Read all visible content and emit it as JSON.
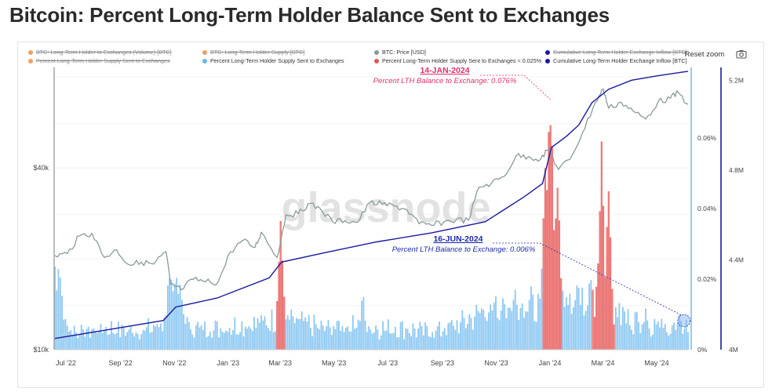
{
  "page": {
    "title": "Bitcoin: Percent Long-Term Holder Balance Sent to Exchanges"
  },
  "toolbar": {
    "reset_zoom_label": "Reset zoom",
    "camera_icon": "camera-icon"
  },
  "legend": [
    {
      "label": "BTC: Long-Term Holder to Exchanges (Volume) [BTC]",
      "color": "#f0a060",
      "hidden": true
    },
    {
      "label": "BTC: Long-Term Holder Supply [BTC]",
      "color": "#f0a060",
      "hidden": true
    },
    {
      "label": "BTC: Price [USD]",
      "color": "#8a9a9a",
      "hidden": false
    },
    {
      "label": "Cumulative Long-Term Holder Exchange Inflow [BTC]",
      "color": "#1a1aa0",
      "hidden": true
    },
    {
      "label": "Percent Long-Term Holder Supply Sent to Exchanges",
      "color": "#f0a060",
      "hidden": true
    },
    {
      "label": "Percent Long-Term Holder Supply Sent to Exchanges",
      "color": "#6ab4ec",
      "hidden": false
    },
    {
      "label": "Percent Long-Term Holder Supply Sent to Exchanges < 0.025%",
      "color": "#e65555",
      "hidden": false
    },
    {
      "label": "Cumulative Long-Term Holder Exchange Inflow [BTC]",
      "color": "#1a1aa0",
      "hidden": false
    }
  ],
  "watermark": "glassnode",
  "annotations": [
    {
      "date": "14-JAN-2024",
      "text": "Percent LTH Balance to Exchange: 0.076%",
      "color": "#e0306a"
    },
    {
      "date": "16-JUN-2024",
      "text": "Percent LTH Balance to Exchange: 0.006%",
      "color": "#1e2aa8"
    }
  ],
  "chart_data": {
    "type": "bar",
    "title": "Bitcoin: Percent Long-Term Holder Balance Sent to Exchanges",
    "x_ticks": [
      "Jul '22",
      "Sep '22",
      "Nov '22",
      "Jan '23",
      "Mar '23",
      "May '23",
      "Jul '23",
      "Sep '23",
      "Nov '23",
      "Jan '24",
      "Mar '24",
      "May '24"
    ],
    "x_start": "2022-07-01",
    "x_end": "2024-06-18",
    "price_axis": {
      "scale": "log",
      "ticks": [
        "$10k",
        "$40k"
      ],
      "tick_values": [
        10000,
        40000
      ]
    },
    "percent_axis": {
      "ticks": [
        "0%",
        "0.02%",
        "0.04%",
        "0.06%"
      ],
      "tick_values": [
        0,
        0.02,
        0.04,
        0.06
      ],
      "range": [
        0,
        0.076
      ]
    },
    "cumulative_axis": {
      "ticks": [
        "4M",
        "4.4M",
        "4.8M",
        "5.2M"
      ],
      "tick_values": [
        4.0,
        4.4,
        4.8,
        5.2
      ],
      "range": [
        4.0,
        5.25
      ],
      "unit": "M"
    },
    "price_series": {
      "name": "BTC: Price [USD]",
      "points": [
        [
          "2022-07-01",
          20500
        ],
        [
          "2022-07-15",
          20800
        ],
        [
          "2022-07-29",
          23800
        ],
        [
          "2022-08-12",
          24300
        ],
        [
          "2022-08-26",
          20200
        ],
        [
          "2022-09-09",
          21400
        ],
        [
          "2022-09-23",
          19100
        ],
        [
          "2022-10-07",
          19500
        ],
        [
          "2022-10-21",
          19200
        ],
        [
          "2022-11-04",
          21100
        ],
        [
          "2022-11-09",
          16500
        ],
        [
          "2022-11-21",
          15800
        ],
        [
          "2022-12-05",
          17100
        ],
        [
          "2022-12-19",
          16800
        ],
        [
          "2023-01-02",
          16700
        ],
        [
          "2023-01-16",
          21100
        ],
        [
          "2023-01-30",
          23000
        ],
        [
          "2023-02-13",
          21800
        ],
        [
          "2023-02-20",
          24500
        ],
        [
          "2023-03-10",
          20200
        ],
        [
          "2023-03-20",
          28000
        ],
        [
          "2023-04-03",
          28200
        ],
        [
          "2023-04-14",
          30400
        ],
        [
          "2023-04-28",
          29300
        ],
        [
          "2023-05-12",
          26500
        ],
        [
          "2023-05-26",
          26800
        ],
        [
          "2023-06-09",
          26400
        ],
        [
          "2023-06-23",
          30700
        ],
        [
          "2023-07-07",
          30300
        ],
        [
          "2023-07-21",
          29900
        ],
        [
          "2023-08-04",
          29100
        ],
        [
          "2023-08-18",
          26100
        ],
        [
          "2023-09-01",
          25800
        ],
        [
          "2023-09-15",
          26500
        ],
        [
          "2023-09-29",
          26900
        ],
        [
          "2023-10-13",
          26800
        ],
        [
          "2023-10-25",
          34500
        ],
        [
          "2023-11-08",
          35600
        ],
        [
          "2023-11-22",
          37400
        ],
        [
          "2023-12-06",
          43800
        ],
        [
          "2023-12-20",
          43600
        ],
        [
          "2024-01-03",
          42800
        ],
        [
          "2024-01-12",
          46000
        ],
        [
          "2024-01-23",
          39500
        ],
        [
          "2024-02-05",
          42700
        ],
        [
          "2024-02-19",
          52000
        ],
        [
          "2024-03-05",
          66000
        ],
        [
          "2024-03-14",
          73000
        ],
        [
          "2024-03-20",
          63000
        ],
        [
          "2024-04-03",
          66000
        ],
        [
          "2024-04-17",
          61500
        ],
        [
          "2024-05-01",
          58000
        ],
        [
          "2024-05-15",
          66200
        ],
        [
          "2024-05-29",
          68000
        ],
        [
          "2024-06-07",
          71000
        ],
        [
          "2024-06-18",
          65000
        ]
      ]
    },
    "cumulative_series": {
      "name": "Cumulative Long-Term Holder Exchange Inflow [BTC]",
      "unit": "M BTC",
      "points": [
        [
          "2022-07-01",
          4.05
        ],
        [
          "2022-09-01",
          4.09
        ],
        [
          "2022-11-01",
          4.13
        ],
        [
          "2022-11-15",
          4.19
        ],
        [
          "2023-01-01",
          4.23
        ],
        [
          "2023-03-01",
          4.32
        ],
        [
          "2023-03-15",
          4.39
        ],
        [
          "2023-05-01",
          4.43
        ],
        [
          "2023-07-01",
          4.48
        ],
        [
          "2023-09-01",
          4.52
        ],
        [
          "2023-11-01",
          4.57
        ],
        [
          "2023-12-15",
          4.68
        ],
        [
          "2024-01-05",
          4.74
        ],
        [
          "2024-01-15",
          4.9
        ],
        [
          "2024-02-01",
          4.95
        ],
        [
          "2024-02-15",
          5.0
        ],
        [
          "2024-03-01",
          5.1
        ],
        [
          "2024-03-20",
          5.16
        ],
        [
          "2024-04-15",
          5.2
        ],
        [
          "2024-05-15",
          5.22
        ],
        [
          "2024-06-18",
          5.24
        ]
      ]
    },
    "percent_series": {
      "name": "Percent Long-Term Holder Supply Sent to Exchanges",
      "unit": "%",
      "baseline": [
        [
          "2022-07-01",
          0.022
        ],
        [
          "2022-07-15",
          0.005
        ],
        [
          "2022-08-01",
          0.004
        ],
        [
          "2022-09-01",
          0.005
        ],
        [
          "2022-10-01",
          0.004
        ],
        [
          "2022-11-01",
          0.006
        ],
        [
          "2022-11-10",
          0.018
        ],
        [
          "2022-12-01",
          0.005
        ],
        [
          "2023-01-01",
          0.005
        ],
        [
          "2023-02-01",
          0.006
        ],
        [
          "2023-03-01",
          0.007
        ],
        [
          "2023-04-01",
          0.007
        ],
        [
          "2023-05-01",
          0.005
        ],
        [
          "2023-06-01",
          0.006
        ],
        [
          "2023-07-01",
          0.005
        ],
        [
          "2023-08-01",
          0.005
        ],
        [
          "2023-09-01",
          0.004
        ],
        [
          "2023-10-01",
          0.006
        ],
        [
          "2023-11-01",
          0.01
        ],
        [
          "2023-12-01",
          0.012
        ],
        [
          "2024-01-01",
          0.011
        ],
        [
          "2024-02-01",
          0.012
        ],
        [
          "2024-03-01",
          0.016
        ],
        [
          "2024-04-01",
          0.009
        ],
        [
          "2024-05-01",
          0.006
        ],
        [
          "2024-06-01",
          0.005
        ],
        [
          "2024-06-16",
          0.006
        ]
      ],
      "spikes": [
        [
          "2022-07-05",
          0.024
        ],
        [
          "2022-11-09",
          0.02
        ],
        [
          "2022-11-14",
          0.018
        ],
        [
          "2023-03-14",
          0.034
        ],
        [
          "2023-06-15",
          0.015
        ],
        [
          "2023-11-12",
          0.017
        ],
        [
          "2023-12-05",
          0.017
        ],
        [
          "2024-01-08",
          0.052
        ],
        [
          "2024-01-14",
          0.076
        ],
        [
          "2024-01-22",
          0.055
        ],
        [
          "2024-02-14",
          0.02
        ],
        [
          "2024-02-28",
          0.022
        ],
        [
          "2024-03-12",
          0.055
        ],
        [
          "2024-03-20",
          0.048
        ],
        [
          "2024-05-01",
          0.012
        ]
      ]
    },
    "threshold_highlight": {
      "name": "Percent Long-Term Holder Supply Sent to Exchanges < 0.025%",
      "ranges": [
        [
          "2023-03-10",
          "2023-03-18"
        ],
        [
          "2024-01-05",
          "2024-01-26"
        ],
        [
          "2024-03-02",
          "2024-03-26"
        ]
      ]
    }
  }
}
